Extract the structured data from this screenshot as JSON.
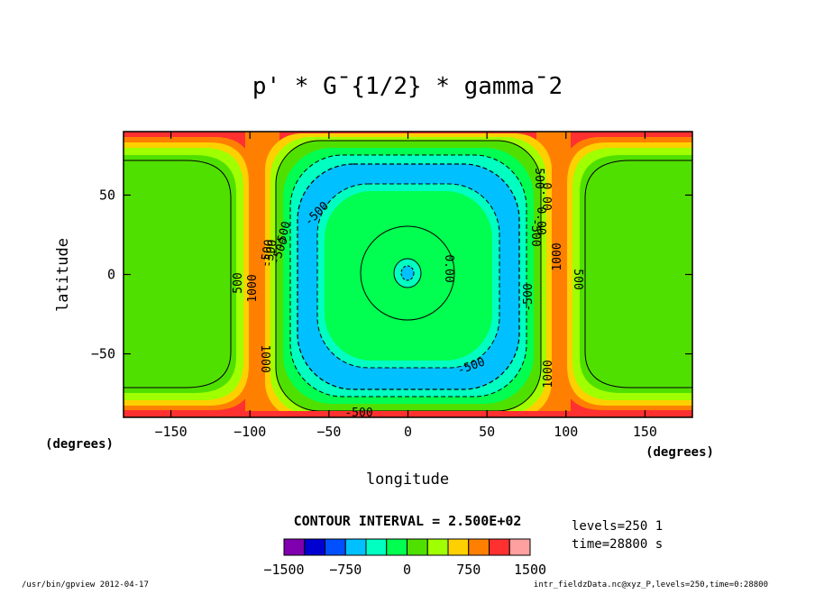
{
  "chart_data": {
    "type": "heatmap",
    "title": "p' * G¯{1/2} * gamma¯2",
    "xlabel": "longitude",
    "ylabel": "latitude",
    "x_unit": "(degrees)",
    "y_unit": "(degrees)",
    "xlim": [
      -180,
      180
    ],
    "ylim": [
      -90,
      90
    ],
    "x_ticks": [
      -150,
      -100,
      -50,
      0,
      50,
      100,
      150
    ],
    "y_ticks": [
      -50,
      0,
      50
    ],
    "contour_interval": "CONTOUR INTERVAL = 2.500E+02",
    "colorbar": {
      "levels": [
        -1500,
        -1250,
        -1000,
        -750,
        -500,
        -250,
        0,
        250,
        500,
        750,
        1000,
        1250,
        1500
      ],
      "tick_labels": [
        "-1500",
        "-750",
        "0",
        "750",
        "1500"
      ],
      "colors": [
        "#8000b0",
        "#0000d0",
        "#0050ff",
        "#00c0ff",
        "#00ffc0",
        "#00ff50",
        "#50e000",
        "#a0ff00",
        "#ffd000",
        "#ff8000",
        "#ff3030",
        "#ffa0a0"
      ]
    },
    "contour_labels": [
      "500",
      "1000",
      "-500",
      "0.00",
      "-500",
      "-500",
      "-500",
      "-500",
      "-500",
      "0.00",
      "1000",
      "500",
      "1000",
      "1000",
      "500",
      "0.00",
      "-500",
      "-500",
      "-500"
    ],
    "info_lines": [
      "levels=250 1",
      "time=28800 s"
    ],
    "footer_left": "/usr/bin/gpview  2012-04-17",
    "footer_right": "intr_fieldzData.nc@xyz_P,levels=250,time=0:28800"
  }
}
